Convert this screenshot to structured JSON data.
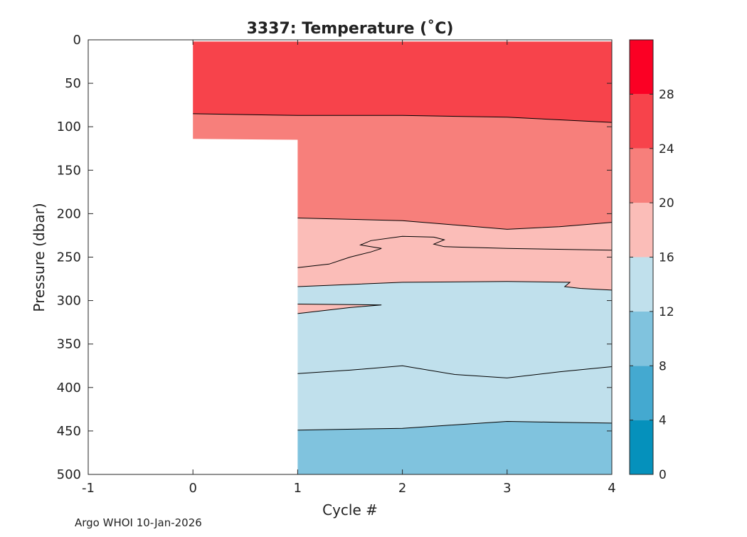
{
  "chart_data": {
    "type": "heatmap",
    "subtype": "filled-contour",
    "title": "3337:  Temperature (˚C)",
    "xlabel": "Cycle #",
    "ylabel": "Pressure (dbar)",
    "xlim": [
      -1,
      4
    ],
    "ylim": [
      0,
      500
    ],
    "y_reversed": true,
    "xticks": [
      "-1",
      "0",
      "1",
      "2",
      "3",
      "4"
    ],
    "yticks": [
      "0",
      "50",
      "100",
      "150",
      "200",
      "250",
      "300",
      "350",
      "400",
      "450",
      "500"
    ],
    "colorbar": {
      "label_values": [
        "0",
        "4",
        "8",
        "12",
        "16",
        "20",
        "24",
        "28"
      ],
      "bands": [
        {
          "from": 0,
          "to": 4,
          "color": "#0591bc"
        },
        {
          "from": 4,
          "to": 8,
          "color": "#44a9d0"
        },
        {
          "from": 8,
          "to": 12,
          "color": "#80c3de"
        },
        {
          "from": 12,
          "to": 16,
          "color": "#c0e0ec"
        },
        {
          "from": 16,
          "to": 20,
          "color": "#fbbdb8"
        },
        {
          "from": 20,
          "to": 24,
          "color": "#f77f7b"
        },
        {
          "from": 24,
          "to": 28,
          "color": "#f7434b"
        },
        {
          "from": 28,
          "to": 32,
          "color": "#fb0024"
        }
      ]
    },
    "contour_regions": [
      {
        "name": "warm-surface-region",
        "band": "24-28",
        "points": [
          [
            0,
            2
          ],
          [
            0,
            85
          ],
          [
            1,
            87
          ],
          [
            2,
            87
          ],
          [
            3,
            89
          ],
          [
            4,
            95
          ],
          [
            4,
            2
          ]
        ]
      },
      {
        "name": "upper-thermocline-region",
        "band": "20-24",
        "points": [
          [
            0,
            85
          ],
          [
            1,
            87
          ],
          [
            2,
            87
          ],
          [
            3,
            89
          ],
          [
            4,
            95
          ],
          [
            4,
            210
          ],
          [
            3.5,
            215
          ],
          [
            3,
            218
          ],
          [
            2.5,
            213
          ],
          [
            2,
            208
          ],
          [
            1,
            205
          ],
          [
            1,
            115
          ],
          [
            0,
            114
          ]
        ]
      },
      {
        "name": "mid-thermocline-region",
        "band": "16-20",
        "points": [
          [
            1,
            205
          ],
          [
            2,
            208
          ],
          [
            2.5,
            213
          ],
          [
            3,
            218
          ],
          [
            3.5,
            215
          ],
          [
            4,
            210
          ],
          [
            4,
            288
          ],
          [
            3.7,
            286
          ],
          [
            3.55,
            284
          ],
          [
            3.6,
            279
          ],
          [
            3,
            278
          ],
          [
            2,
            279
          ],
          [
            1,
            284
          ]
        ]
      },
      {
        "name": "subsurface-region",
        "band": "12-16",
        "points": [
          [
            1,
            284
          ],
          [
            2,
            279
          ],
          [
            3,
            278
          ],
          [
            3.6,
            279
          ],
          [
            3.55,
            284
          ],
          [
            3.7,
            286
          ],
          [
            4,
            288
          ],
          [
            4,
            441
          ],
          [
            3.5,
            440
          ],
          [
            3,
            439
          ],
          [
            2,
            447
          ],
          [
            1,
            449
          ]
        ]
      },
      {
        "name": "warm-intrusion-region",
        "band": "16-20",
        "points": [
          [
            1,
            304
          ],
          [
            1.8,
            305
          ],
          [
            1.5,
            308
          ],
          [
            1,
            315
          ]
        ]
      },
      {
        "name": "deep-region",
        "band": "8-12",
        "points": [
          [
            1,
            449
          ],
          [
            2,
            447
          ],
          [
            3,
            439
          ],
          [
            3.5,
            440
          ],
          [
            4,
            441
          ],
          [
            4,
            500
          ],
          [
            1,
            500
          ]
        ]
      }
    ],
    "contour_lines": [
      {
        "name": "contour-line-24",
        "points": [
          [
            0,
            85
          ],
          [
            1,
            87
          ],
          [
            2,
            87
          ],
          [
            3,
            89
          ],
          [
            4,
            95
          ]
        ]
      },
      {
        "name": "contour-line-20",
        "points": [
          [
            1,
            205
          ],
          [
            2,
            208
          ],
          [
            2.5,
            213
          ],
          [
            3,
            218
          ],
          [
            3.5,
            215
          ],
          [
            4,
            210
          ]
        ]
      },
      {
        "name": "contour-line-18-wiggle",
        "points": [
          [
            1,
            262
          ],
          [
            1.3,
            258
          ],
          [
            1.5,
            250
          ],
          [
            1.7,
            244
          ],
          [
            1.8,
            240
          ],
          [
            1.6,
            236
          ],
          [
            1.7,
            231
          ],
          [
            2,
            226
          ],
          [
            2.3,
            227
          ],
          [
            2.4,
            230
          ],
          [
            2.3,
            235
          ],
          [
            2.4,
            238
          ],
          [
            3,
            240
          ],
          [
            4,
            242
          ]
        ]
      },
      {
        "name": "contour-line-16",
        "points": [
          [
            1,
            284
          ],
          [
            2,
            279
          ],
          [
            3,
            278
          ],
          [
            3.6,
            279
          ],
          [
            3.55,
            284
          ],
          [
            3.7,
            286
          ],
          [
            4,
            288
          ]
        ]
      },
      {
        "name": "contour-line-intrusion",
        "points": [
          [
            1,
            315
          ],
          [
            1.5,
            308
          ],
          [
            1.8,
            305
          ],
          [
            1,
            304
          ]
        ]
      },
      {
        "name": "contour-line-14",
        "points": [
          [
            1,
            384
          ],
          [
            1.5,
            380
          ],
          [
            2,
            375
          ],
          [
            2.5,
            385
          ],
          [
            3,
            389
          ],
          [
            3.5,
            382
          ],
          [
            4,
            376
          ]
        ]
      },
      {
        "name": "contour-line-12",
        "points": [
          [
            1,
            449
          ],
          [
            2,
            447
          ],
          [
            3,
            439
          ],
          [
            3.5,
            440
          ],
          [
            4,
            441
          ]
        ]
      }
    ]
  },
  "footer": {
    "text": "Argo WHOI 10-Jan-2026"
  }
}
